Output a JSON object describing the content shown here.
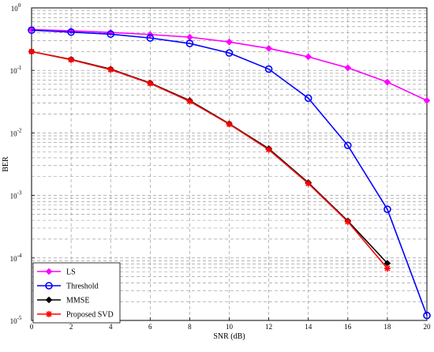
{
  "chart_data": {
    "type": "line",
    "title": "",
    "xlabel": "SNR (dB)",
    "ylabel": "BER",
    "xlim": [
      0,
      20
    ],
    "ylim": [
      1e-05,
      1
    ],
    "y_scale": "log",
    "grid": true,
    "legend_position": "bottom-left",
    "x_ticks": [
      0,
      2,
      4,
      6,
      8,
      10,
      12,
      14,
      16,
      18,
      20
    ],
    "y_tick_labels": [
      {
        "base": "10",
        "exp": "0"
      },
      {
        "base": "10",
        "exp": "-1"
      },
      {
        "base": "10",
        "exp": "-2"
      },
      {
        "base": "10",
        "exp": "-3"
      },
      {
        "base": "10",
        "exp": "-4"
      },
      {
        "base": "10",
        "exp": "-5"
      }
    ],
    "series": [
      {
        "name": "LS",
        "color": "#ff00ff",
        "marker": "diamond",
        "x": [
          0,
          2,
          4,
          6,
          8,
          10,
          12,
          14,
          16,
          18,
          20
        ],
        "y": [
          0.45,
          0.43,
          0.405,
          0.375,
          0.34,
          0.285,
          0.225,
          0.165,
          0.11,
          0.065,
          0.033
        ]
      },
      {
        "name": "Threshold",
        "color": "#0000ff",
        "marker": "circle",
        "x": [
          0,
          2,
          4,
          6,
          8,
          10,
          12,
          14,
          16,
          18,
          20
        ],
        "y": [
          0.44,
          0.41,
          0.38,
          0.33,
          0.27,
          0.19,
          0.105,
          0.036,
          0.0063,
          0.0006,
          1.2e-05
        ]
      },
      {
        "name": "MMSE",
        "color": "#000000",
        "marker": "diamond",
        "x": [
          0,
          2,
          4,
          6,
          8,
          10,
          12,
          14,
          16,
          18
        ],
        "y": [
          0.2,
          0.15,
          0.105,
          0.063,
          0.033,
          0.014,
          0.0056,
          0.0016,
          0.00039,
          8.2e-05
        ]
      },
      {
        "name": "Proposed SVD",
        "color": "#ff0000",
        "marker": "star",
        "x": [
          0,
          2,
          4,
          6,
          8,
          10,
          12,
          14,
          16,
          18
        ],
        "y": [
          0.2,
          0.148,
          0.103,
          0.062,
          0.032,
          0.0138,
          0.0054,
          0.00155,
          0.00038,
          6.8e-05
        ]
      }
    ]
  }
}
